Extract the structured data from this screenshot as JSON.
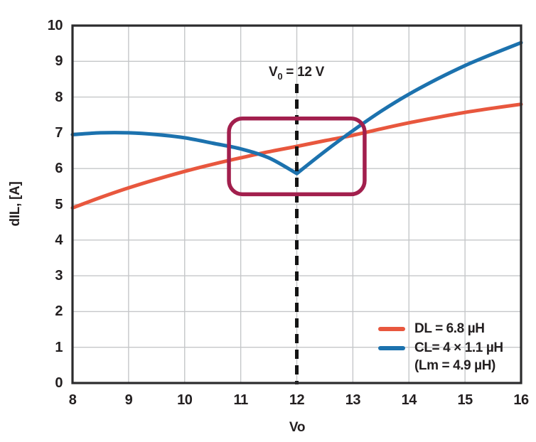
{
  "chart_data": {
    "type": "line",
    "title": "",
    "xlabel": "Vo",
    "ylabel": "dIL, [A]",
    "xlim": [
      8,
      16
    ],
    "ylim": [
      0,
      10
    ],
    "x_ticks": [
      8,
      9,
      10,
      11,
      12,
      13,
      14,
      15,
      16
    ],
    "y_ticks": [
      0,
      1,
      2,
      3,
      4,
      5,
      6,
      7,
      8,
      9,
      10
    ],
    "grid": true,
    "legend_position": "lower right",
    "axis_color": "#2b2b2d",
    "grid_color": "#c5c7c9",
    "text_color": "#231f20",
    "series": [
      {
        "name": "DL = 6.8 µH",
        "color": "#e8573e",
        "x": [
          8,
          8.5,
          9,
          9.5,
          10,
          10.5,
          11,
          11.5,
          12,
          12.5,
          13,
          13.5,
          14,
          14.5,
          15,
          15.5,
          16
        ],
        "y": [
          4.9,
          5.19,
          5.46,
          5.7,
          5.92,
          6.12,
          6.3,
          6.47,
          6.62,
          6.78,
          6.93,
          7.11,
          7.28,
          7.43,
          7.57,
          7.69,
          7.8
        ]
      },
      {
        "name": "CL= 4 × 1.1 µH",
        "sublabel": "(Lm = 4.9 µH)",
        "color": "#1c72ae",
        "split_x": 12,
        "x": [
          8,
          8.5,
          9,
          9.5,
          10,
          10.5,
          11,
          11.5,
          12,
          12.5,
          13,
          13.5,
          14,
          14.5,
          15,
          15.5,
          16
        ],
        "y": [
          6.95,
          7.0,
          7.0,
          6.95,
          6.86,
          6.71,
          6.55,
          6.3,
          5.86,
          6.48,
          7.06,
          7.6,
          8.08,
          8.5,
          8.88,
          9.21,
          9.52
        ]
      }
    ],
    "marker_line": {
      "x": 12,
      "style": "dashed",
      "color": "#141414",
      "y_top": 8.37,
      "label": {
        "base": "V",
        "sub": "0",
        "rest": " = 12 V"
      }
    },
    "annotation_box": {
      "x0": 10.79,
      "x1": 13.21,
      "y0": 5.28,
      "y1": 7.4,
      "color": "#a21f4d"
    }
  }
}
